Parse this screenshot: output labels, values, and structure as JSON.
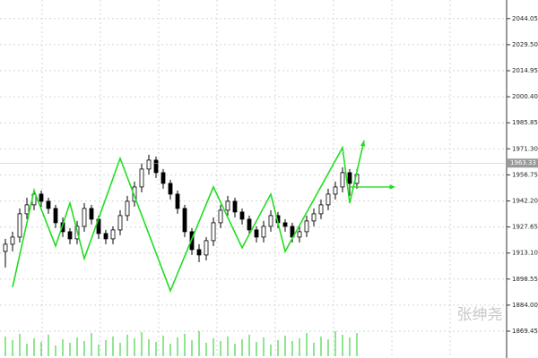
{
  "chart_data": {
    "type": "candlestick",
    "ylim": [
      1854.45,
      2054.45
    ],
    "yticks": [
      2044.05,
      {
        "value": 2029.5,
        "label": "2029.50"
      },
      2014.95,
      {
        "value": 2000.4,
        "label": "2000.40"
      },
      1985.85,
      {
        "value": 1971.3,
        "label": "1971.30"
      },
      1956.75,
      {
        "value": 1942.2,
        "label": "1942.20"
      },
      1927.65,
      {
        "value": 1913.1,
        "label": "1913.10"
      },
      1898.55,
      {
        "value": 1884,
        "label": "1884.00"
      },
      1869.45
    ],
    "grid": true,
    "open": [
      1914,
      1918,
      1922,
      1935,
      1940,
      1946,
      1942,
      1938,
      1930,
      1925,
      1921,
      1928,
      1938,
      1932,
      1924,
      1921,
      1926,
      1934,
      1942,
      1950,
      1960,
      1965,
      1958,
      1952,
      1946,
      1938,
      1925,
      1915,
      1912,
      1920,
      1930,
      1937,
      1942,
      1936,
      1932,
      1926,
      1922,
      1928,
      1934,
      1930,
      1928,
      1922,
      1925,
      1931,
      1935,
      1940,
      1946,
      1950,
      1958,
      1952
    ],
    "high": [
      1921,
      1925,
      1938,
      1944,
      1949,
      1948,
      1944,
      1940,
      1933,
      1927,
      1931,
      1941,
      1940,
      1934,
      1926,
      1928,
      1937,
      1945,
      1953,
      1963,
      1968,
      1967,
      1960,
      1954,
      1948,
      1940,
      1927,
      1918,
      1922,
      1933,
      1940,
      1945,
      1944,
      1938,
      1934,
      1928,
      1931,
      1937,
      1936,
      1932,
      1930,
      1928,
      1934,
      1938,
      1943,
      1949,
      1953,
      1961,
      1960,
      1960
    ],
    "low": [
      1905,
      1914,
      1919,
      1932,
      1937,
      1939,
      1935,
      1927,
      1922,
      1918,
      1918,
      1925,
      1929,
      1921,
      1918,
      1918,
      1923,
      1931,
      1939,
      1947,
      1957,
      1955,
      1949,
      1943,
      1935,
      1922,
      1912,
      1908,
      1909,
      1917,
      1927,
      1934,
      1933,
      1929,
      1923,
      1919,
      1919,
      1925,
      1927,
      1925,
      1919,
      1919,
      1922,
      1928,
      1932,
      1937,
      1943,
      1947,
      1945,
      1949
    ],
    "close": [
      1918,
      1922,
      1935,
      1940,
      1946,
      1942,
      1938,
      1930,
      1925,
      1921,
      1928,
      1938,
      1932,
      1924,
      1921,
      1926,
      1934,
      1942,
      1950,
      1960,
      1965,
      1958,
      1952,
      1946,
      1938,
      1925,
      1915,
      1912,
      1920,
      1930,
      1937,
      1942,
      1936,
      1932,
      1926,
      1922,
      1928,
      1934,
      1930,
      1928,
      1922,
      1925,
      1931,
      1935,
      1940,
      1946,
      1950,
      1958,
      1952,
      1957
    ],
    "volume": [
      22,
      18,
      25,
      14,
      20,
      16,
      24,
      12,
      19,
      15,
      21,
      17,
      26,
      13,
      18,
      22,
      15,
      24,
      20,
      27,
      19,
      16,
      23,
      14,
      21,
      25,
      18,
      28,
      15,
      20,
      17,
      22,
      14,
      19,
      24,
      16,
      21,
      13,
      18,
      23,
      17,
      20,
      26,
      15,
      22,
      19,
      28,
      24,
      21,
      26
    ],
    "zigzag": {
      "color": "#22dd22",
      "x": [
        1,
        4,
        7,
        9,
        11,
        16,
        23,
        29,
        33,
        37,
        39,
        47,
        48,
        50
      ],
      "values": [
        1894,
        1948,
        1917,
        1941,
        1910,
        1966,
        1892,
        1950,
        1916,
        1946,
        1914,
        1972,
        1941,
        1976
      ]
    },
    "level": {
      "x": [
        48,
        54
      ],
      "value": 1950
    },
    "current_price": {
      "value": 1963.33,
      "label": "1963.33"
    },
    "watermark": "张绅尧"
  }
}
